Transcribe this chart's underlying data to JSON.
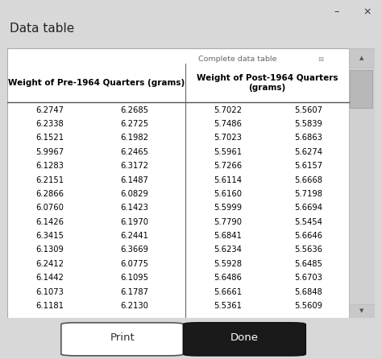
{
  "title": "Data table",
  "complete_data_table_label": "Complete data table",
  "pre1964_header": "Weight of Pre-1964 Quarters (grams)",
  "post1964_header": "Weight of Post-1964 Quarters\n(grams)",
  "pre1964_col1": [
    6.2747,
    6.2338,
    6.1521,
    5.9967,
    6.1283,
    6.2151,
    6.2866,
    6.076,
    6.1426,
    6.3415,
    6.1309,
    6.2412,
    6.1442,
    6.1073,
    6.1181
  ],
  "pre1964_col2": [
    6.2685,
    6.2725,
    6.1982,
    6.2465,
    6.3172,
    6.1487,
    6.0829,
    6.1423,
    6.197,
    6.2441,
    6.3669,
    6.0775,
    6.1095,
    6.1787,
    6.213
  ],
  "post1964_col1": [
    5.7022,
    5.7486,
    5.7023,
    5.5961,
    5.7266,
    5.6114,
    5.616,
    5.5999,
    5.779,
    5.6841,
    5.6234,
    5.5928,
    5.6486,
    5.6661,
    5.5361
  ],
  "post1964_col2": [
    5.5607,
    5.5839,
    5.6863,
    5.6274,
    5.6157,
    5.6668,
    5.7198,
    5.6694,
    5.5454,
    5.6646,
    5.5636,
    5.6485,
    5.6703,
    5.6848,
    5.5609
  ],
  "window_bg": "#d8d8d8",
  "title_fontsize": 11,
  "header_fontsize": 7.5,
  "data_fontsize": 7.2,
  "small_fontsize": 6.8
}
